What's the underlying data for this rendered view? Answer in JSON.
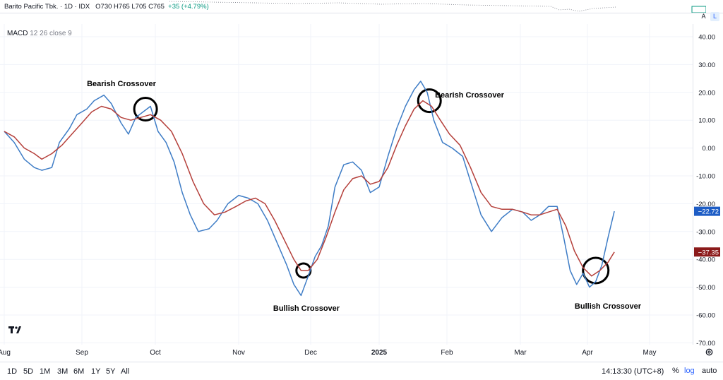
{
  "header": {
    "symbol_text": "Barito Pacific Tbk. · 1D · IDX",
    "ohlc_text": "O730  H765  L705  C765",
    "change_text": "+35 (+4.79%)"
  },
  "scale_buttons": {
    "auto": "A",
    "log": "L"
  },
  "indicator": {
    "name": "MACD",
    "params": "12 26 close 9"
  },
  "bottom": {
    "ranges": [
      "1D",
      "5D",
      "1M",
      "3M",
      "6M",
      "1Y",
      "5Y",
      "All"
    ],
    "time": "14:13:30 (UTC+8)",
    "percent": "%",
    "log": "log",
    "auto": "auto"
  },
  "colors": {
    "macd": "#3f7dc6",
    "signal": "#b5403b",
    "macd_tag": "#1e5dc5",
    "signal_tag": "#8b1a1a",
    "grid": "#f0f3fa",
    "text": "#131722"
  },
  "icons": {
    "logo": "tradingview-logo-icon",
    "settings": "gear-icon"
  },
  "chart_data": {
    "type": "line",
    "title": "MACD 12 26 close 9",
    "ylim": [
      -70,
      40
    ],
    "y_ticks": [
      "40.00",
      "30.00",
      "20.00",
      "10.00",
      "0.00",
      "-10.00",
      "-20.00",
      "-30.00",
      "-40.00",
      "-50.00",
      "-60.00",
      "-70.00"
    ],
    "x_ticks": [
      "Aug",
      "Sep",
      "Oct",
      "Nov",
      "Dec",
      "2025",
      "Feb",
      "Mar",
      "Apr",
      "May"
    ],
    "x_start": "2024-08-01",
    "x_end": "2025-04-14",
    "last_values": {
      "macd": "−22.72",
      "signal": "−37.35"
    },
    "series": [
      {
        "name": "MACD",
        "points": [
          [
            "2024-08-01",
            6
          ],
          [
            "2024-08-05",
            2
          ],
          [
            "2024-08-09",
            -4
          ],
          [
            "2024-08-13",
            -7
          ],
          [
            "2024-08-16",
            -8
          ],
          [
            "2024-08-20",
            -7
          ],
          [
            "2024-08-23",
            2
          ],
          [
            "2024-08-27",
            7
          ],
          [
            "2024-08-30",
            12
          ],
          [
            "2024-09-03",
            14
          ],
          [
            "2024-09-06",
            17
          ],
          [
            "2024-09-10",
            19
          ],
          [
            "2024-09-13",
            16
          ],
          [
            "2024-09-17",
            9
          ],
          [
            "2024-09-20",
            5
          ],
          [
            "2024-09-23",
            11
          ],
          [
            "2024-09-26",
            13
          ],
          [
            "2024-09-29",
            15
          ],
          [
            "2024-10-02",
            6
          ],
          [
            "2024-10-05",
            2
          ],
          [
            "2024-10-08",
            -5
          ],
          [
            "2024-10-11",
            -16
          ],
          [
            "2024-10-14",
            -24
          ],
          [
            "2024-10-17",
            -30
          ],
          [
            "2024-10-21",
            -29
          ],
          [
            "2024-10-24",
            -26
          ],
          [
            "2024-10-28",
            -20
          ],
          [
            "2024-11-01",
            -17
          ],
          [
            "2024-11-05",
            -18
          ],
          [
            "2024-11-09",
            -20
          ],
          [
            "2024-11-13",
            -26
          ],
          [
            "2024-11-17",
            -34
          ],
          [
            "2024-11-21",
            -42
          ],
          [
            "2024-11-24",
            -49
          ],
          [
            "2024-11-27",
            -53
          ],
          [
            "2024-11-30",
            -46
          ],
          [
            "2024-12-03",
            -39
          ],
          [
            "2024-12-06",
            -35
          ],
          [
            "2024-12-09",
            -28
          ],
          [
            "2024-12-12",
            -14
          ],
          [
            "2024-12-16",
            -6
          ],
          [
            "2024-12-20",
            -5
          ],
          [
            "2024-12-24",
            -8
          ],
          [
            "2024-12-28",
            -16
          ],
          [
            "2025-01-01",
            -14
          ],
          [
            "2025-01-05",
            -3
          ],
          [
            "2025-01-09",
            7
          ],
          [
            "2025-01-13",
            15
          ],
          [
            "2025-01-17",
            21
          ],
          [
            "2025-01-20",
            24
          ],
          [
            "2025-01-23",
            20
          ],
          [
            "2025-01-26",
            10
          ],
          [
            "2025-01-30",
            2
          ],
          [
            "2025-02-03",
            0
          ],
          [
            "2025-02-07",
            -3
          ],
          [
            "2025-02-11",
            -15
          ],
          [
            "2025-02-14",
            -24
          ],
          [
            "2025-02-18",
            -30
          ],
          [
            "2025-02-22",
            -25
          ],
          [
            "2025-02-26",
            -22
          ],
          [
            "2025-03-02",
            -23
          ],
          [
            "2025-03-06",
            -26
          ],
          [
            "2025-03-10",
            -24
          ],
          [
            "2025-03-14",
            -21
          ],
          [
            "2025-03-18",
            -21
          ],
          [
            "2025-03-21",
            -32
          ],
          [
            "2025-03-24",
            -44
          ],
          [
            "2025-03-27",
            -49
          ],
          [
            "2025-03-30",
            -45
          ],
          [
            "2025-04-02",
            -50
          ],
          [
            "2025-04-05",
            -48
          ],
          [
            "2025-04-08",
            -42
          ],
          [
            "2025-04-11",
            -32
          ],
          [
            "2025-04-14",
            -22.72
          ]
        ]
      },
      {
        "name": "Signal",
        "points": [
          [
            "2024-08-01",
            6
          ],
          [
            "2024-08-05",
            4
          ],
          [
            "2024-08-09",
            0
          ],
          [
            "2024-08-13",
            -2
          ],
          [
            "2024-08-16",
            -4
          ],
          [
            "2024-08-20",
            -2
          ],
          [
            "2024-08-24",
            1
          ],
          [
            "2024-08-28",
            5
          ],
          [
            "2024-09-01",
            9
          ],
          [
            "2024-09-05",
            13
          ],
          [
            "2024-09-09",
            15
          ],
          [
            "2024-09-13",
            14
          ],
          [
            "2024-09-17",
            11
          ],
          [
            "2024-09-21",
            10
          ],
          [
            "2024-09-25",
            11
          ],
          [
            "2024-09-29",
            12
          ],
          [
            "2024-10-03",
            10
          ],
          [
            "2024-10-07",
            6
          ],
          [
            "2024-10-11",
            -2
          ],
          [
            "2024-10-15",
            -12
          ],
          [
            "2024-10-19",
            -20
          ],
          [
            "2024-10-23",
            -24
          ],
          [
            "2024-10-27",
            -23
          ],
          [
            "2024-10-31",
            -21
          ],
          [
            "2024-11-04",
            -19
          ],
          [
            "2024-11-08",
            -18
          ],
          [
            "2024-11-12",
            -20
          ],
          [
            "2024-11-16",
            -26
          ],
          [
            "2024-11-20",
            -33
          ],
          [
            "2024-11-24",
            -40
          ],
          [
            "2024-11-27",
            -44
          ],
          [
            "2024-11-30",
            -44
          ],
          [
            "2024-12-04",
            -40
          ],
          [
            "2024-12-08",
            -32
          ],
          [
            "2024-12-12",
            -23
          ],
          [
            "2024-12-16",
            -15
          ],
          [
            "2024-12-20",
            -11
          ],
          [
            "2024-12-24",
            -10
          ],
          [
            "2024-12-28",
            -13
          ],
          [
            "2025-01-01",
            -12
          ],
          [
            "2025-01-05",
            -7
          ],
          [
            "2025-01-09",
            1
          ],
          [
            "2025-01-13",
            8
          ],
          [
            "2025-01-17",
            14
          ],
          [
            "2025-01-21",
            17
          ],
          [
            "2025-01-25",
            15
          ],
          [
            "2025-01-29",
            10
          ],
          [
            "2025-02-02",
            5
          ],
          [
            "2025-02-06",
            1
          ],
          [
            "2025-02-10",
            -7
          ],
          [
            "2025-02-14",
            -16
          ],
          [
            "2025-02-18",
            -21
          ],
          [
            "2025-02-22",
            -22
          ],
          [
            "2025-02-26",
            -22
          ],
          [
            "2025-03-02",
            -23
          ],
          [
            "2025-03-06",
            -24
          ],
          [
            "2025-03-10",
            -24
          ],
          [
            "2025-03-14",
            -23
          ],
          [
            "2025-03-18",
            -22
          ],
          [
            "2025-03-22",
            -28
          ],
          [
            "2025-03-26",
            -37
          ],
          [
            "2025-03-30",
            -43
          ],
          [
            "2025-04-03",
            -46
          ],
          [
            "2025-04-07",
            -44
          ],
          [
            "2025-04-11",
            -41
          ],
          [
            "2025-04-14",
            -37.35
          ]
        ]
      }
    ],
    "annotations": [
      {
        "text": "Bearish Crossover",
        "x": "2024-09-27",
        "y": 14
      },
      {
        "text": "Bullish Crossover",
        "x": "2024-11-28",
        "y": -44
      },
      {
        "text": "Bearish Crossover",
        "x": "2025-01-24",
        "y": 17
      },
      {
        "text": "Bullish Crossover",
        "x": "2025-04-05",
        "y": -44
      }
    ]
  }
}
